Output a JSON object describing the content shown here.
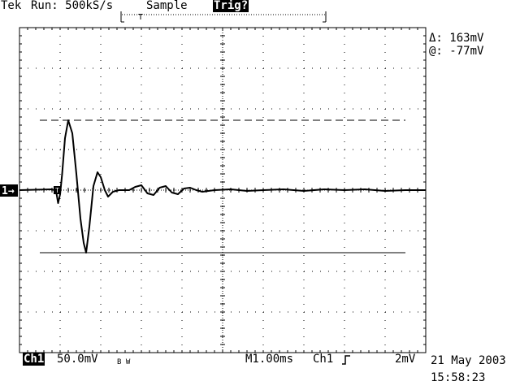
{
  "header": {
    "brand": "Tek",
    "run_state": "Run: 500kS/s",
    "acquisition_mode": "Sample",
    "trigger_status": "Trig?"
  },
  "cursor_readout": {
    "delta": "Δ: 163mV",
    "at": "@: -77mV"
  },
  "channel_marker": "1→",
  "trigger_marker": "T",
  "footer": {
    "channel_badge": "Ch1",
    "volts_per_div": "50.0mV",
    "bw_limit": "B W",
    "time_per_div": "M1.00ms",
    "trigger_source": "Ch1",
    "trigger_slope_icon": "rising-edge-icon",
    "trigger_level": "2mV",
    "date": "21 May 2003",
    "time": "15:58:23"
  },
  "chart_data": {
    "type": "line",
    "title": "",
    "xlabel": "",
    "ylabel": "",
    "x_unit": "ms",
    "y_unit": "mV",
    "x_divisions": 10,
    "y_divisions": 8,
    "grid": true,
    "xlim": [
      0,
      10
    ],
    "ylim": [
      -200,
      200
    ],
    "cursors": [
      {
        "name": "cursor-upper",
        "value_mV": 86,
        "style": "dashed"
      },
      {
        "name": "cursor-lower",
        "value_mV": -77,
        "style": "solid"
      }
    ],
    "series": [
      {
        "points": [
          [
            0.0,
            0
          ],
          [
            0.8,
            1
          ],
          [
            0.9,
            -1
          ],
          [
            0.95,
            -16
          ],
          [
            1.0,
            -5
          ],
          [
            1.05,
            20
          ],
          [
            1.12,
            64
          ],
          [
            1.2,
            86
          ],
          [
            1.3,
            70
          ],
          [
            1.4,
            20
          ],
          [
            1.5,
            -35
          ],
          [
            1.58,
            -65
          ],
          [
            1.64,
            -77
          ],
          [
            1.72,
            -45
          ],
          [
            1.82,
            5
          ],
          [
            1.92,
            22
          ],
          [
            2.0,
            16
          ],
          [
            2.1,
            0
          ],
          [
            2.18,
            -8
          ],
          [
            2.3,
            -2
          ],
          [
            2.45,
            0
          ],
          [
            2.7,
            0
          ],
          [
            2.85,
            4
          ],
          [
            3.0,
            6
          ],
          [
            3.15,
            -4
          ],
          [
            3.3,
            -6
          ],
          [
            3.45,
            3
          ],
          [
            3.6,
            5
          ],
          [
            3.75,
            -3
          ],
          [
            3.9,
            -5
          ],
          [
            4.05,
            2
          ],
          [
            4.2,
            3
          ],
          [
            4.35,
            0
          ],
          [
            4.5,
            -2
          ],
          [
            4.8,
            0
          ],
          [
            5.2,
            1
          ],
          [
            5.6,
            -1
          ],
          [
            6.0,
            0
          ],
          [
            6.5,
            1
          ],
          [
            7.0,
            -1
          ],
          [
            7.5,
            1
          ],
          [
            8.0,
            0
          ],
          [
            8.5,
            1
          ],
          [
            9.0,
            -1
          ],
          [
            9.5,
            0
          ],
          [
            10.0,
            0
          ]
        ]
      }
    ]
  }
}
